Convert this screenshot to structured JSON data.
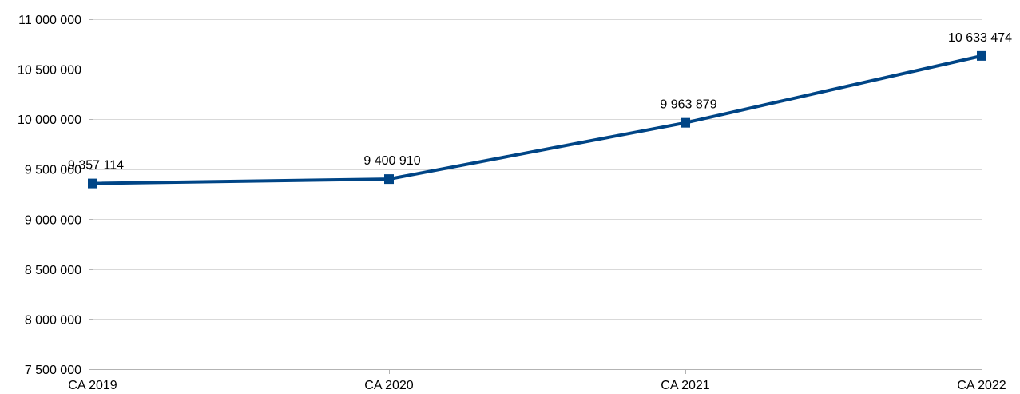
{
  "chart_data": {
    "type": "line",
    "categories": [
      "CA 2019",
      "CA 2020",
      "CA 2021",
      "CA 2022"
    ],
    "series": [
      {
        "values": [
          9357114,
          9400910,
          9963879,
          10633474
        ],
        "color": "#004586",
        "marker": "square"
      }
    ],
    "data_labels": [
      "9 357 114",
      "9 400 910",
      "9 963 879",
      "10 633 474"
    ],
    "y_ticks": [
      7500000,
      8000000,
      8500000,
      9000000,
      9500000,
      10000000,
      10500000,
      11000000
    ],
    "y_tick_labels": [
      "7 500 000",
      "8 000 000",
      "8 500 000",
      "9 000 000",
      "9 500 000",
      "10 000 000",
      "10 500 000",
      "11 000 000"
    ],
    "ylim": [
      7500000,
      11000000
    ],
    "grid": true,
    "legend": false,
    "title": "",
    "xlabel": "",
    "ylabel": ""
  }
}
